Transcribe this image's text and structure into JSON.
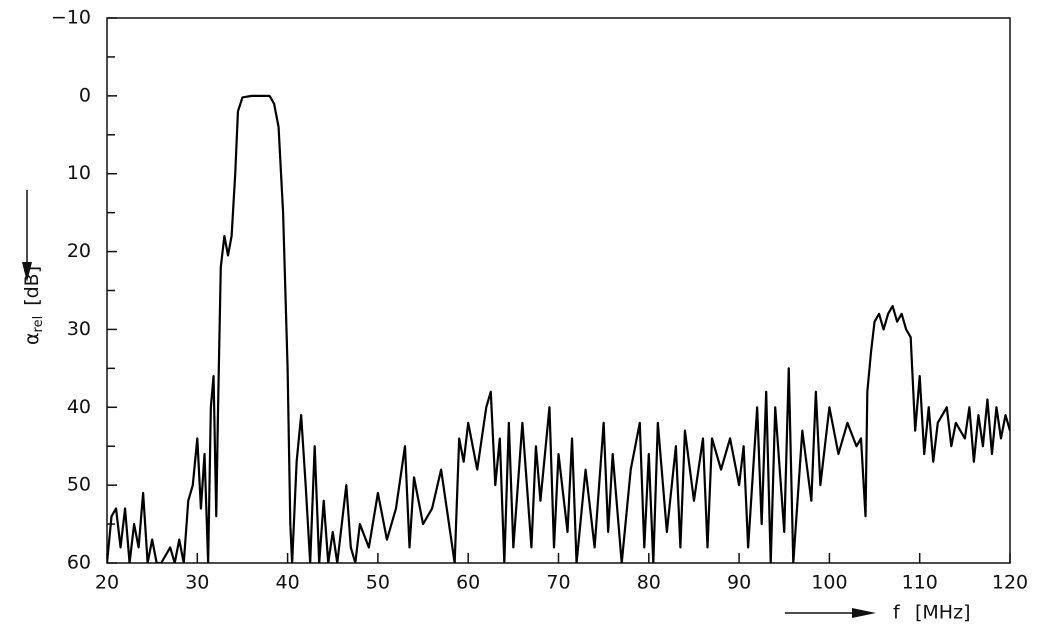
{
  "chart_data": {
    "type": "line",
    "color": "#000000",
    "y_label": "α",
    "y_label_sub": "rel",
    "y_label_unit": "[dB]",
    "x_label": "f",
    "x_label_unit": "[MHz]",
    "xlim": [
      20,
      120
    ],
    "xticks": [
      20,
      30,
      40,
      50,
      60,
      70,
      80,
      90,
      100,
      110,
      120
    ],
    "ylim": [
      -10,
      60
    ],
    "y_inverted": true,
    "yticks": [
      {
        "value": -10,
        "label": "−10"
      },
      0,
      10,
      20,
      30,
      40,
      50,
      60
    ],
    "yminor_ticks": [
      -5,
      5,
      15,
      25,
      35,
      45,
      55
    ],
    "x": [
      20,
      20.5,
      21,
      21.5,
      22,
      22.5,
      23,
      23.5,
      24,
      24.5,
      25,
      25.5,
      26,
      27,
      27.5,
      28,
      28.5,
      29,
      29.5,
      30,
      30.4,
      30.8,
      31.2,
      31.5,
      31.8,
      32.1,
      32.3,
      32.6,
      33,
      33.4,
      33.8,
      34.2,
      34.5,
      35,
      36,
      37,
      38,
      38.5,
      39,
      39.5,
      40,
      40.3,
      40.5,
      41,
      41.5,
      42,
      42.5,
      43,
      43.5,
      44,
      44.5,
      45,
      45.5,
      46,
      46.5,
      47,
      47.5,
      48,
      49,
      50,
      51,
      52,
      53,
      53.5,
      54,
      55,
      56,
      57,
      58,
      58.5,
      59,
      59.5,
      60,
      61,
      62,
      62.5,
      63,
      63.5,
      64,
      64.5,
      65,
      66,
      67,
      67.5,
      68,
      69,
      69.5,
      70,
      71,
      71.5,
      72,
      73,
      74,
      75,
      75.5,
      76,
      77,
      78,
      79,
      79.5,
      80,
      80.5,
      81,
      82,
      83,
      83.5,
      84,
      85,
      86,
      86.5,
      87,
      88,
      89,
      90,
      90.5,
      91,
      92,
      92.5,
      93,
      93.5,
      94,
      95,
      95.5,
      96,
      97,
      98,
      98.5,
      99,
      100,
      101,
      102,
      103,
      103.5,
      104,
      104.2,
      104.6,
      105,
      105.5,
      106,
      106.5,
      107,
      107.5,
      108,
      108.5,
      109,
      109.5,
      110,
      110.5,
      111,
      111.5,
      112,
      113,
      113.5,
      114,
      115,
      115.5,
      116,
      116.5,
      117,
      117.5,
      118,
      118.5,
      119,
      119.5,
      120
    ],
    "values": [
      60,
      54,
      53,
      58,
      53,
      60,
      55,
      58,
      51,
      60,
      57,
      60,
      60,
      58,
      60,
      57,
      60,
      52,
      50,
      44,
      53,
      46,
      60,
      40,
      36,
      54,
      40,
      22,
      18,
      20.5,
      18,
      10,
      2,
      0.2,
      0,
      0,
      0,
      1,
      4,
      15,
      35,
      55,
      60,
      47,
      41,
      50,
      60,
      45,
      60,
      52,
      60,
      56,
      60,
      55,
      50,
      58,
      60,
      55,
      58,
      51,
      57,
      53,
      45,
      58,
      49,
      55,
      53,
      48,
      56,
      60,
      44,
      47,
      42,
      48,
      40,
      38,
      50,
      44,
      60,
      42,
      58,
      42,
      58,
      45,
      52,
      40,
      58,
      46,
      56,
      44,
      60,
      48,
      58,
      42,
      56,
      46,
      60,
      48,
      42,
      58,
      46,
      60,
      42,
      56,
      45,
      58,
      43,
      52,
      44,
      58,
      44,
      48,
      44,
      50,
      45,
      58,
      40,
      55,
      38,
      60,
      40,
      56,
      35,
      60,
      43,
      52,
      38,
      50,
      40,
      46,
      42,
      45,
      44,
      54,
      38,
      33,
      29,
      28,
      30,
      28,
      27,
      29,
      28,
      30,
      31,
      43,
      36,
      46,
      40,
      47,
      42,
      40,
      45,
      42,
      44,
      40,
      47,
      41,
      45,
      39,
      46,
      40,
      44,
      41,
      43
    ]
  }
}
